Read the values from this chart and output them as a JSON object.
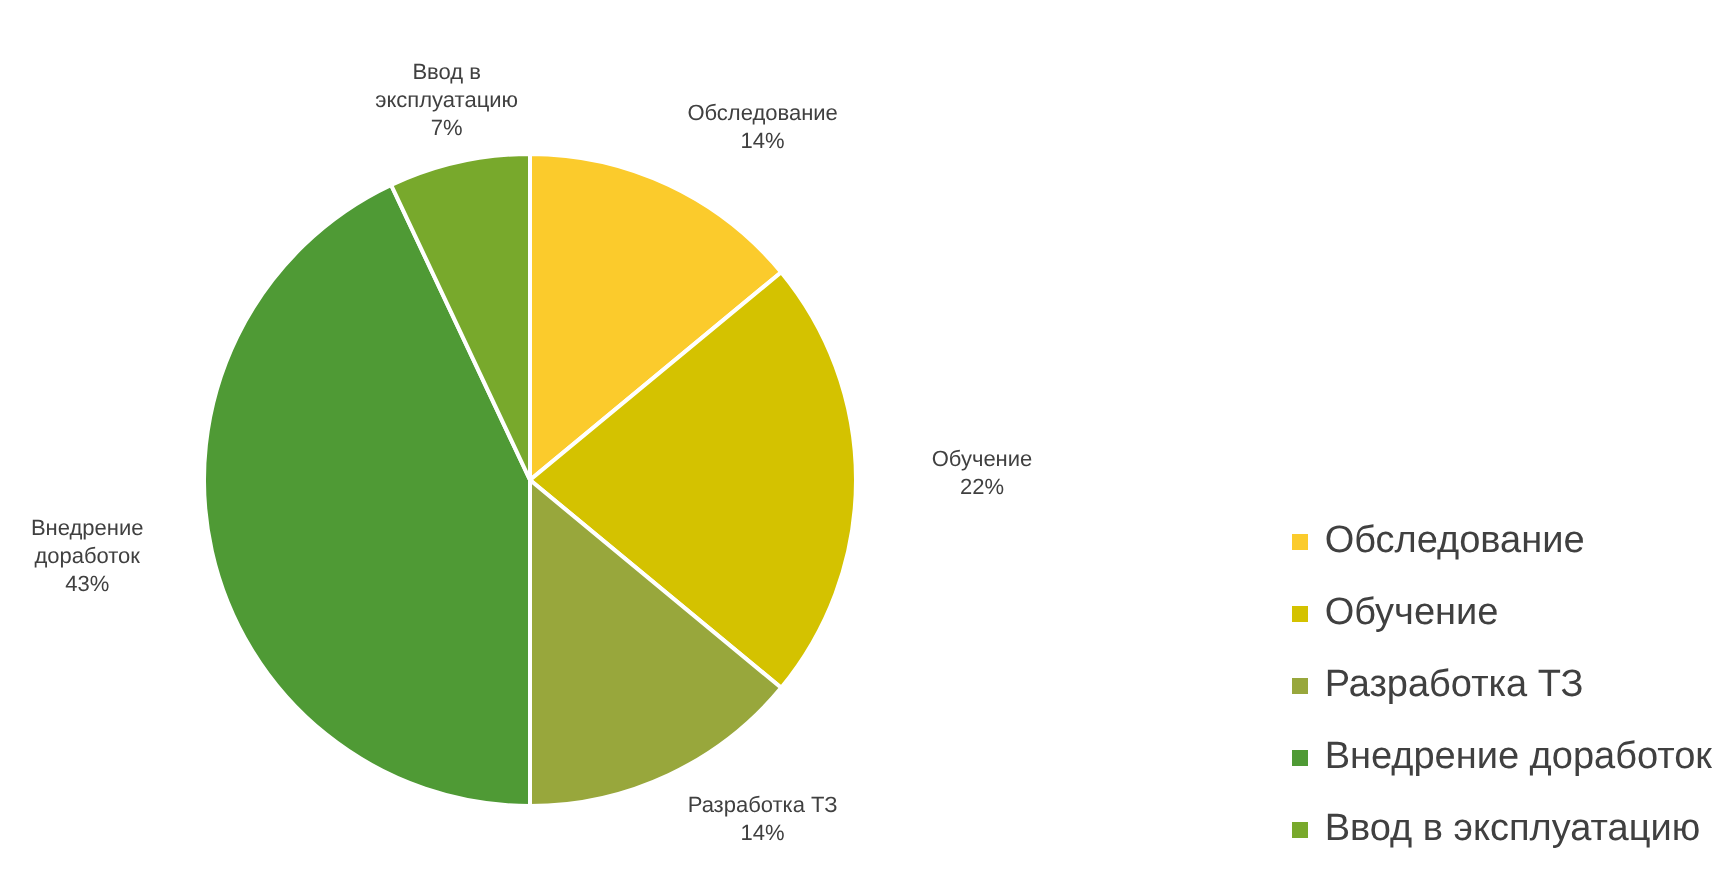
{
  "chart_data": {
    "type": "pie",
    "categories": [
      "Обследование",
      "Обучение",
      "Разработка ТЗ",
      "Внедрение доработок",
      "Ввод в эксплуатацию"
    ],
    "values": [
      14,
      22,
      14,
      43,
      7
    ],
    "colors": [
      "#fbcb2c",
      "#d4c200",
      "#98a73c",
      "#4f9a35",
      "#78a92c"
    ],
    "value_labels": [
      "14%",
      "22%",
      "14%",
      "43%",
      "7%"
    ],
    "legend": "right"
  }
}
